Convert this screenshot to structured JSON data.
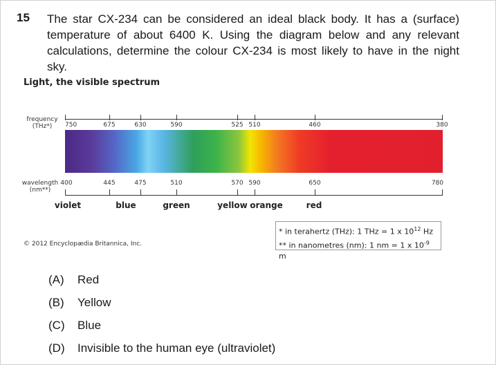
{
  "question": {
    "number": "15",
    "text": "The star CX-234 can be considered an ideal black body. It has a (surface) temperature of about 6400 K. Using the diagram below and any relevant calculations, determine the colour CX-234 is most likely to have in the night sky."
  },
  "figure": {
    "title": "Light, the visible spectrum",
    "frequency_label_1": "frequency",
    "frequency_label_2": "(THz*)",
    "wavelength_label_1": "wavelength",
    "wavelength_label_2": "(nm**)",
    "frequency_ticks": [
      "750",
      "675",
      "630",
      "590",
      "525",
      "510",
      "460",
      "380"
    ],
    "wavelength_ticks": [
      "400",
      "445",
      "475",
      "510",
      "570",
      "590",
      "650",
      "780"
    ],
    "colour_names": [
      "violet",
      "blue",
      "green",
      "yellow",
      "orange",
      "red"
    ],
    "copyright": "© 2012 Encyclopædia Britannica, Inc.",
    "note_1_prefix": "*  in terahertz (THz): 1 THz = 1 x 10",
    "note_1_exp": "12",
    "note_1_suffix": " Hz",
    "note_2_prefix": "** in nanometres (nm): 1 nm = 1 x 10",
    "note_2_exp": "-9",
    "note_2_suffix": " m"
  },
  "options": [
    {
      "letter": "(A)",
      "text": "Red"
    },
    {
      "letter": "(B)",
      "text": "Yellow"
    },
    {
      "letter": "(C)",
      "text": "Blue"
    },
    {
      "letter": "(D)",
      "text": "Invisible to the human eye (ultraviolet)"
    }
  ]
}
